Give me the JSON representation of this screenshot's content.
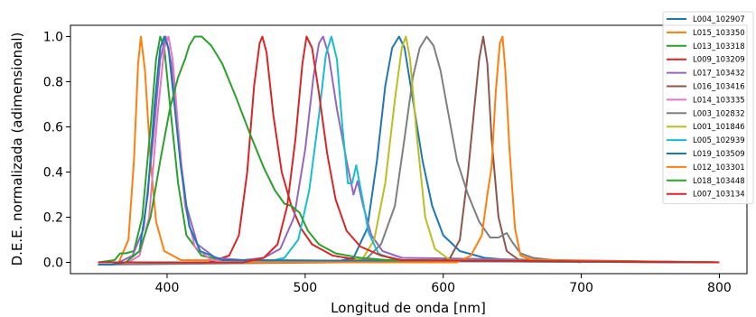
{
  "chart_data": {
    "type": "line",
    "title": "",
    "xlabel": "Longitud de onda [nm]",
    "ylabel": "D.E.E. normalizada (adimensional)",
    "xlim": [
      330,
      820
    ],
    "ylim": [
      -0.05,
      1.05
    ],
    "xticks": [
      400,
      500,
      600,
      700,
      800
    ],
    "yticks": [
      0.0,
      0.2,
      0.4,
      0.6,
      0.8,
      1.0
    ],
    "xtick_labels": [
      "400",
      "500",
      "600",
      "700",
      "800"
    ],
    "ytick_labels": [
      "0.0",
      "0.2",
      "0.4",
      "0.6",
      "0.8",
      "1.0"
    ],
    "grid": false,
    "legend_position": "right",
    "series": [
      {
        "name": "L004_102907",
        "color": "#1f77b4",
        "points": [
          [
            350,
            0
          ],
          [
            520,
            0
          ],
          [
            535,
            0.02
          ],
          [
            545,
            0.15
          ],
          [
            552,
            0.45
          ],
          [
            558,
            0.78
          ],
          [
            563,
            0.95
          ],
          [
            568,
            1.0
          ],
          [
            572,
            0.95
          ],
          [
            578,
            0.72
          ],
          [
            585,
            0.45
          ],
          [
            592,
            0.25
          ],
          [
            600,
            0.12
          ],
          [
            612,
            0.05
          ],
          [
            630,
            0.02
          ],
          [
            650,
            0.01
          ],
          [
            800,
            0
          ]
        ]
      },
      {
        "name": "L015_103350",
        "color": "#ff7f0e",
        "points": [
          [
            350,
            0
          ],
          [
            365,
            0
          ],
          [
            372,
            0.1
          ],
          [
            376,
            0.45
          ],
          [
            379,
            0.88
          ],
          [
            381,
            1.0
          ],
          [
            384,
            0.85
          ],
          [
            388,
            0.45
          ],
          [
            392,
            0.18
          ],
          [
            398,
            0.05
          ],
          [
            410,
            0.01
          ],
          [
            800,
            0
          ]
        ]
      },
      {
        "name": "L013_103318",
        "color": "#2ca02c",
        "points": [
          [
            350,
            0
          ],
          [
            362,
            0.01
          ],
          [
            366,
            0.04
          ],
          [
            370,
            0.04
          ],
          [
            376,
            0.05
          ],
          [
            382,
            0.2
          ],
          [
            388,
            0.6
          ],
          [
            392,
            0.9
          ],
          [
            395,
            1.0
          ],
          [
            398,
            0.95
          ],
          [
            402,
            0.7
          ],
          [
            408,
            0.35
          ],
          [
            414,
            0.12
          ],
          [
            425,
            0.03
          ],
          [
            440,
            0.01
          ],
          [
            800,
            0
          ]
        ]
      },
      {
        "name": "L009_103209",
        "color": "#d62728",
        "points": [
          [
            350,
            0
          ],
          [
            430,
            0
          ],
          [
            445,
            0.03
          ],
          [
            452,
            0.12
          ],
          [
            458,
            0.4
          ],
          [
            463,
            0.78
          ],
          [
            467,
            0.97
          ],
          [
            469,
            1.0
          ],
          [
            472,
            0.93
          ],
          [
            477,
            0.65
          ],
          [
            483,
            0.4
          ],
          [
            490,
            0.25
          ],
          [
            497,
            0.15
          ],
          [
            505,
            0.08
          ],
          [
            520,
            0.03
          ],
          [
            540,
            0.01
          ],
          [
            800,
            0
          ]
        ]
      },
      {
        "name": "L017_103432",
        "color": "#9467bd",
        "points": [
          [
            350,
            0
          ],
          [
            365,
            0
          ],
          [
            375,
            0.03
          ],
          [
            383,
            0.15
          ],
          [
            390,
            0.55
          ],
          [
            395,
            0.9
          ],
          [
            399,
            1.0
          ],
          [
            403,
            0.88
          ],
          [
            408,
            0.55
          ],
          [
            414,
            0.25
          ],
          [
            422,
            0.08
          ],
          [
            435,
            0.02
          ],
          [
            455,
            0.01
          ],
          [
            470,
            0.02
          ],
          [
            482,
            0.06
          ],
          [
            492,
            0.2
          ],
          [
            500,
            0.5
          ],
          [
            506,
            0.82
          ],
          [
            510,
            0.97
          ],
          [
            513,
            1.0
          ],
          [
            517,
            0.92
          ],
          [
            523,
            0.68
          ],
          [
            530,
            0.45
          ],
          [
            535,
            0.3
          ],
          [
            538,
            0.36
          ],
          [
            542,
            0.25
          ],
          [
            548,
            0.12
          ],
          [
            556,
            0.05
          ],
          [
            570,
            0.02
          ],
          [
            800,
            0
          ]
        ]
      },
      {
        "name": "L016_103416",
        "color": "#8c564b",
        "points": [
          [
            350,
            0
          ],
          [
            595,
            0
          ],
          [
            605,
            0.02
          ],
          [
            612,
            0.1
          ],
          [
            618,
            0.4
          ],
          [
            622,
            0.65
          ],
          [
            626,
            0.9
          ],
          [
            629,
            1.0
          ],
          [
            632,
            0.88
          ],
          [
            635,
            0.55
          ],
          [
            640,
            0.2
          ],
          [
            646,
            0.05
          ],
          [
            655,
            0.01
          ],
          [
            800,
            0
          ]
        ]
      },
      {
        "name": "L014_103335",
        "color": "#e377c2",
        "points": [
          [
            350,
            0
          ],
          [
            372,
            0
          ],
          [
            380,
            0.03
          ],
          [
            387,
            0.2
          ],
          [
            393,
            0.65
          ],
          [
            398,
            0.95
          ],
          [
            401,
            1.0
          ],
          [
            404,
            0.9
          ],
          [
            408,
            0.6
          ],
          [
            413,
            0.25
          ],
          [
            420,
            0.07
          ],
          [
            432,
            0.01
          ],
          [
            800,
            0
          ]
        ]
      },
      {
        "name": "L003_102832",
        "color": "#7f7f7f",
        "points": [
          [
            350,
            -0.01
          ],
          [
            530,
            0
          ],
          [
            545,
            0.02
          ],
          [
            555,
            0.08
          ],
          [
            565,
            0.25
          ],
          [
            572,
            0.55
          ],
          [
            578,
            0.82
          ],
          [
            583,
            0.95
          ],
          [
            588,
            1.0
          ],
          [
            593,
            0.96
          ],
          [
            598,
            0.85
          ],
          [
            604,
            0.65
          ],
          [
            610,
            0.45
          ],
          [
            618,
            0.3
          ],
          [
            626,
            0.18
          ],
          [
            634,
            0.11
          ],
          [
            640,
            0.11
          ],
          [
            646,
            0.13
          ],
          [
            650,
            0.09
          ],
          [
            656,
            0.04
          ],
          [
            665,
            0.02
          ],
          [
            680,
            0.01
          ],
          [
            685,
            0.01
          ],
          [
            700,
            0
          ]
        ]
      },
      {
        "name": "L001_101846",
        "color": "#bcbd22",
        "points": [
          [
            350,
            0
          ],
          [
            530,
            0
          ],
          [
            542,
            0.02
          ],
          [
            550,
            0.1
          ],
          [
            558,
            0.35
          ],
          [
            565,
            0.72
          ],
          [
            570,
            0.95
          ],
          [
            573,
            1.0
          ],
          [
            576,
            0.9
          ],
          [
            581,
            0.55
          ],
          [
            587,
            0.2
          ],
          [
            594,
            0.06
          ],
          [
            605,
            0.01
          ],
          [
            800,
            0
          ]
        ]
      },
      {
        "name": "L005_102939",
        "color": "#17becf",
        "points": [
          [
            350,
            0
          ],
          [
            470,
            0
          ],
          [
            485,
            0.02
          ],
          [
            495,
            0.1
          ],
          [
            503,
            0.32
          ],
          [
            510,
            0.65
          ],
          [
            515,
            0.92
          ],
          [
            519,
            1.0
          ],
          [
            523,
            0.9
          ],
          [
            527,
            0.6
          ],
          [
            531,
            0.35
          ],
          [
            534,
            0.35
          ],
          [
            537,
            0.43
          ],
          [
            541,
            0.3
          ],
          [
            546,
            0.13
          ],
          [
            553,
            0.04
          ],
          [
            565,
            0.01
          ],
          [
            800,
            0
          ]
        ]
      },
      {
        "name": "L019_103509",
        "color": "#1f77b4",
        "points": [
          [
            350,
            -0.01
          ],
          [
            360,
            -0.01
          ],
          [
            370,
            0
          ],
          [
            380,
            0.05
          ],
          [
            386,
            0.3
          ],
          [
            391,
            0.7
          ],
          [
            395,
            0.95
          ],
          [
            398,
            1.0
          ],
          [
            401,
            0.95
          ],
          [
            405,
            0.72
          ],
          [
            410,
            0.42
          ],
          [
            416,
            0.16
          ],
          [
            424,
            0.05
          ],
          [
            440,
            0.01
          ],
          [
            800,
            0
          ]
        ]
      },
      {
        "name": "L012_103301",
        "color": "#ff7f0e",
        "points": [
          [
            350,
            0
          ],
          [
            610,
            0
          ],
          [
            620,
            0.03
          ],
          [
            628,
            0.12
          ],
          [
            632,
            0.3
          ],
          [
            635,
            0.42
          ],
          [
            638,
            0.75
          ],
          [
            641,
            0.97
          ],
          [
            643,
            1.0
          ],
          [
            645,
            0.85
          ],
          [
            648,
            0.5
          ],
          [
            652,
            0.15
          ],
          [
            656,
            0.03
          ],
          [
            665,
            0.01
          ],
          [
            800,
            0
          ]
        ]
      },
      {
        "name": "L018_103448",
        "color": "#2ca02c",
        "points": [
          [
            350,
            0
          ],
          [
            370,
            0
          ],
          [
            380,
            0.05
          ],
          [
            388,
            0.2
          ],
          [
            395,
            0.45
          ],
          [
            402,
            0.68
          ],
          [
            408,
            0.82
          ],
          [
            413,
            0.9
          ],
          [
            416,
            0.96
          ],
          [
            420,
            1.0
          ],
          [
            425,
            1.0
          ],
          [
            432,
            0.96
          ],
          [
            440,
            0.88
          ],
          [
            450,
            0.73
          ],
          [
            460,
            0.57
          ],
          [
            470,
            0.42
          ],
          [
            478,
            0.32
          ],
          [
            485,
            0.26
          ],
          [
            490,
            0.25
          ],
          [
            496,
            0.22
          ],
          [
            502,
            0.14
          ],
          [
            510,
            0.08
          ],
          [
            522,
            0.04
          ],
          [
            540,
            0.02
          ],
          [
            560,
            0.01
          ],
          [
            800,
            0
          ]
        ]
      },
      {
        "name": "L007_103134",
        "color": "#d62728",
        "points": [
          [
            350,
            0
          ],
          [
            455,
            0
          ],
          [
            470,
            0.02
          ],
          [
            480,
            0.08
          ],
          [
            487,
            0.25
          ],
          [
            493,
            0.55
          ],
          [
            498,
            0.88
          ],
          [
            501,
            1.0
          ],
          [
            505,
            0.95
          ],
          [
            510,
            0.75
          ],
          [
            516,
            0.48
          ],
          [
            522,
            0.28
          ],
          [
            530,
            0.14
          ],
          [
            540,
            0.07
          ],
          [
            555,
            0.03
          ],
          [
            570,
            0.01
          ],
          [
            800,
            0
          ]
        ]
      }
    ]
  }
}
